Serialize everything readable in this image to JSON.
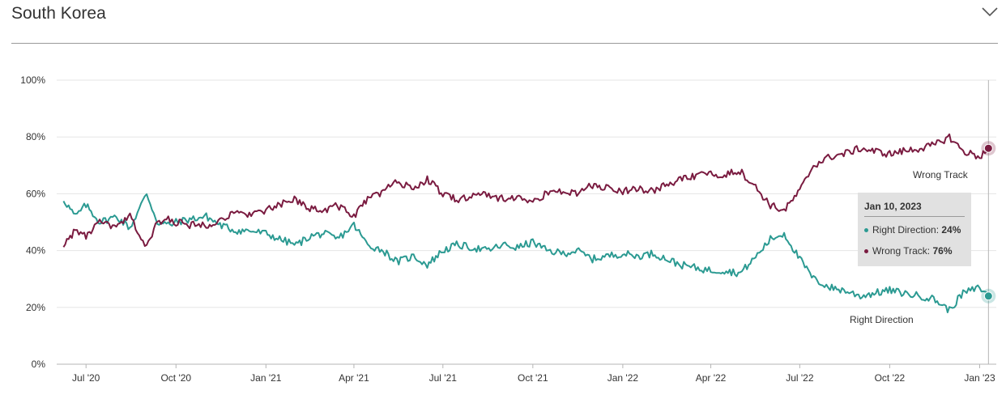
{
  "header": {
    "title": "South Korea",
    "toggle_icon": "chevron-down-icon"
  },
  "colors": {
    "right_direction": "#2b9a92",
    "wrong_track": "#7a1b40",
    "grid": "#e5e5e5",
    "axis": "#b5b5b5"
  },
  "chart_data": {
    "type": "line",
    "y_ticks": [
      "0%",
      "20%",
      "40%",
      "60%",
      "80%",
      "100%"
    ],
    "x_ticks": [
      "Jul '20",
      "Oct '20",
      "Jan '21",
      "Apr '21",
      "Jul '21",
      "Oct '21",
      "Jan '22",
      "Apr '22",
      "Jul '22",
      "Oct '22",
      "Jan '23"
    ],
    "ylim": [
      0,
      100
    ],
    "xlim": [
      "2020-06-01",
      "2023-01-18"
    ],
    "grid": true,
    "series": [
      {
        "name": "Right Direction",
        "color": "#2b9a92",
        "x": [
          "2020-06-08",
          "2020-06-20",
          "2020-07-01",
          "2020-07-15",
          "2020-08-01",
          "2020-08-15",
          "2020-09-01",
          "2020-09-12",
          "2020-09-25",
          "2020-10-01",
          "2020-10-15",
          "2020-11-01",
          "2020-11-15",
          "2020-12-01",
          "2020-12-15",
          "2021-01-01",
          "2021-01-15",
          "2021-02-01",
          "2021-02-15",
          "2021-03-01",
          "2021-03-15",
          "2021-04-01",
          "2021-04-15",
          "2021-05-01",
          "2021-05-15",
          "2021-06-01",
          "2021-06-15",
          "2021-07-01",
          "2021-07-15",
          "2021-08-01",
          "2021-08-15",
          "2021-09-01",
          "2021-09-15",
          "2021-10-01",
          "2021-10-15",
          "2021-11-01",
          "2021-11-15",
          "2021-12-01",
          "2021-12-15",
          "2022-01-01",
          "2022-01-15",
          "2022-02-01",
          "2022-02-15",
          "2022-03-01",
          "2022-03-15",
          "2022-04-01",
          "2022-04-15",
          "2022-05-01",
          "2022-05-15",
          "2022-06-01",
          "2022-06-15",
          "2022-07-01",
          "2022-07-15",
          "2022-08-01",
          "2022-08-15",
          "2022-09-01",
          "2022-09-15",
          "2022-10-01",
          "2022-10-15",
          "2022-11-01",
          "2022-11-15",
          "2022-12-01",
          "2022-12-15",
          "2023-01-01",
          "2023-01-10"
        ],
        "values": [
          58,
          52,
          56,
          50,
          52,
          48,
          60,
          50,
          49,
          50,
          51,
          52,
          49,
          47,
          47,
          46,
          44,
          42,
          45,
          46,
          44,
          49,
          42,
          40,
          36,
          38,
          35,
          40,
          42,
          41,
          40,
          42,
          41,
          43,
          40,
          39,
          40,
          37,
          38,
          39,
          38,
          39,
          37,
          35,
          34,
          33,
          33,
          32,
          37,
          44,
          46,
          37,
          30,
          27,
          26,
          24,
          25,
          26,
          25,
          24,
          23,
          19,
          25,
          27,
          24
        ]
      },
      {
        "name": "Wrong Track",
        "color": "#7a1b40",
        "x": [
          "2020-06-08",
          "2020-06-20",
          "2020-07-01",
          "2020-07-15",
          "2020-08-01",
          "2020-08-15",
          "2020-09-01",
          "2020-09-12",
          "2020-09-25",
          "2020-10-01",
          "2020-10-15",
          "2020-11-01",
          "2020-11-15",
          "2020-12-01",
          "2020-12-15",
          "2021-01-01",
          "2021-01-15",
          "2021-02-01",
          "2021-02-15",
          "2021-03-01",
          "2021-03-15",
          "2021-04-01",
          "2021-04-15",
          "2021-05-01",
          "2021-05-15",
          "2021-06-01",
          "2021-06-15",
          "2021-07-01",
          "2021-07-15",
          "2021-08-01",
          "2021-08-15",
          "2021-09-01",
          "2021-09-15",
          "2021-10-01",
          "2021-10-15",
          "2021-11-01",
          "2021-11-15",
          "2021-12-01",
          "2021-12-15",
          "2022-01-01",
          "2022-01-15",
          "2022-02-01",
          "2022-02-15",
          "2022-03-01",
          "2022-03-15",
          "2022-04-01",
          "2022-04-15",
          "2022-05-01",
          "2022-05-15",
          "2022-06-01",
          "2022-06-15",
          "2022-07-01",
          "2022-07-15",
          "2022-08-01",
          "2022-08-15",
          "2022-09-01",
          "2022-09-15",
          "2022-10-01",
          "2022-10-15",
          "2022-11-01",
          "2022-11-15",
          "2022-12-01",
          "2022-12-15",
          "2023-01-01",
          "2023-01-10"
        ],
        "values": [
          42,
          47,
          45,
          50,
          48,
          52,
          41,
          50,
          51,
          50,
          49,
          49,
          51,
          53,
          53,
          54,
          56,
          58,
          55,
          54,
          56,
          52,
          58,
          61,
          64,
          62,
          65,
          60,
          58,
          59,
          60,
          58,
          59,
          57,
          60,
          61,
          60,
          63,
          62,
          61,
          62,
          61,
          63,
          65,
          66,
          67,
          67,
          68,
          63,
          56,
          54,
          61,
          70,
          73,
          74,
          76,
          75,
          74,
          75,
          76,
          77,
          80,
          75,
          73,
          76
        ]
      }
    ],
    "annotations": [
      "Wrong Track",
      "Right Direction"
    ],
    "tooltip": {
      "date": "Jan 10, 2023",
      "rows": [
        {
          "label": "Right Direction:",
          "value": "24%"
        },
        {
          "label": "Wrong Track:",
          "value": "76%"
        }
      ]
    },
    "hover_date": "2023-01-10"
  }
}
